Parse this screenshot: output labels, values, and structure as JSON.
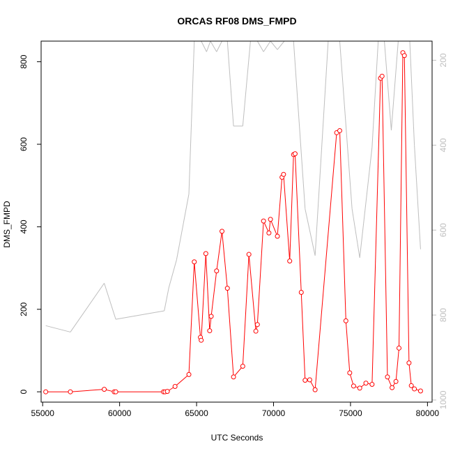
{
  "chart_data": {
    "type": "line",
    "title": "ORCAS RF08 DMS_FMPD",
    "xlabel": "UTC Seconds",
    "ylabel": "DMS_FMPD",
    "xlim": [
      54900,
      80300
    ],
    "ylim": [
      -25,
      850
    ],
    "y2lim": [
      1005,
      155
    ],
    "x_ticks": [
      55000,
      60000,
      65000,
      70000,
      75000,
      80000
    ],
    "x_tick_labels": [
      "55000",
      "60000",
      "65000",
      "70000",
      "75000",
      "80000"
    ],
    "y_ticks": [
      0,
      200,
      400,
      600,
      800
    ],
    "y_tick_labels": [
      "0",
      "200",
      "400",
      "600",
      "800"
    ],
    "y2_ticks": [
      200,
      400,
      600,
      800,
      1000
    ],
    "y2_tick_labels": [
      "200",
      "400",
      "600",
      "800",
      "1000"
    ],
    "grid": false,
    "colors": {
      "primary": "#ff0000",
      "secondary": "#bebebe",
      "axis": "#000000"
    },
    "series": [
      {
        "axis": "left",
        "color": "#ff0000",
        "markers": "open-circle",
        "x": [
          55200,
          56800,
          59000,
          59650,
          59750,
          62850,
          62950,
          63100,
          63600,
          64500,
          64850,
          65250,
          65300,
          65600,
          65850,
          65950,
          66300,
          66650,
          67000,
          67400,
          68000,
          68400,
          68850,
          68950,
          69350,
          69700,
          69800,
          70250,
          70550,
          70650,
          71050,
          71300,
          71400,
          71800,
          72050,
          72350,
          72700,
          74100,
          74300,
          74700,
          74950,
          75200,
          75600,
          76000,
          76400,
          76950,
          77050,
          77400,
          77700,
          77950,
          78150,
          78400,
          78500,
          78800,
          78950,
          79150,
          79550
        ],
        "y": [
          0,
          0,
          6,
          0,
          0,
          0,
          0,
          1,
          13,
          42,
          315,
          132,
          125,
          335,
          148,
          183,
          293,
          389,
          251,
          36,
          62,
          333,
          147,
          163,
          414,
          385,
          418,
          377,
          520,
          527,
          317,
          575,
          577,
          241,
          28,
          29,
          5,
          628,
          633,
          172,
          46,
          14,
          9,
          21,
          18,
          760,
          765,
          36,
          10,
          25,
          106,
          822,
          815,
          70,
          15,
          7,
          2
        ]
      },
      {
        "axis": "right",
        "color": "#bebebe",
        "markers": "none",
        "x": [
          55200,
          56800,
          59000,
          59750,
          62900,
          63200,
          63700,
          64500,
          64850,
          65300,
          65650,
          65900,
          66300,
          66650,
          67000,
          67400,
          68000,
          68500,
          68950,
          69350,
          69800,
          70250,
          70700,
          71000,
          71300,
          72050,
          72700,
          73550,
          74300,
          75100,
          75600,
          76400,
          76800,
          77200,
          77650,
          78100,
          78500,
          78850,
          79150,
          79550
        ],
        "y": [
          825,
          840,
          725,
          810,
          790,
          735,
          670,
          515,
          155,
          155,
          180,
          155,
          180,
          155,
          155,
          355,
          355,
          155,
          155,
          180,
          155,
          175,
          155,
          155,
          155,
          550,
          660,
          155,
          155,
          550,
          665,
          405,
          155,
          155,
          365,
          155,
          155,
          155,
          400,
          645
        ]
      }
    ]
  }
}
